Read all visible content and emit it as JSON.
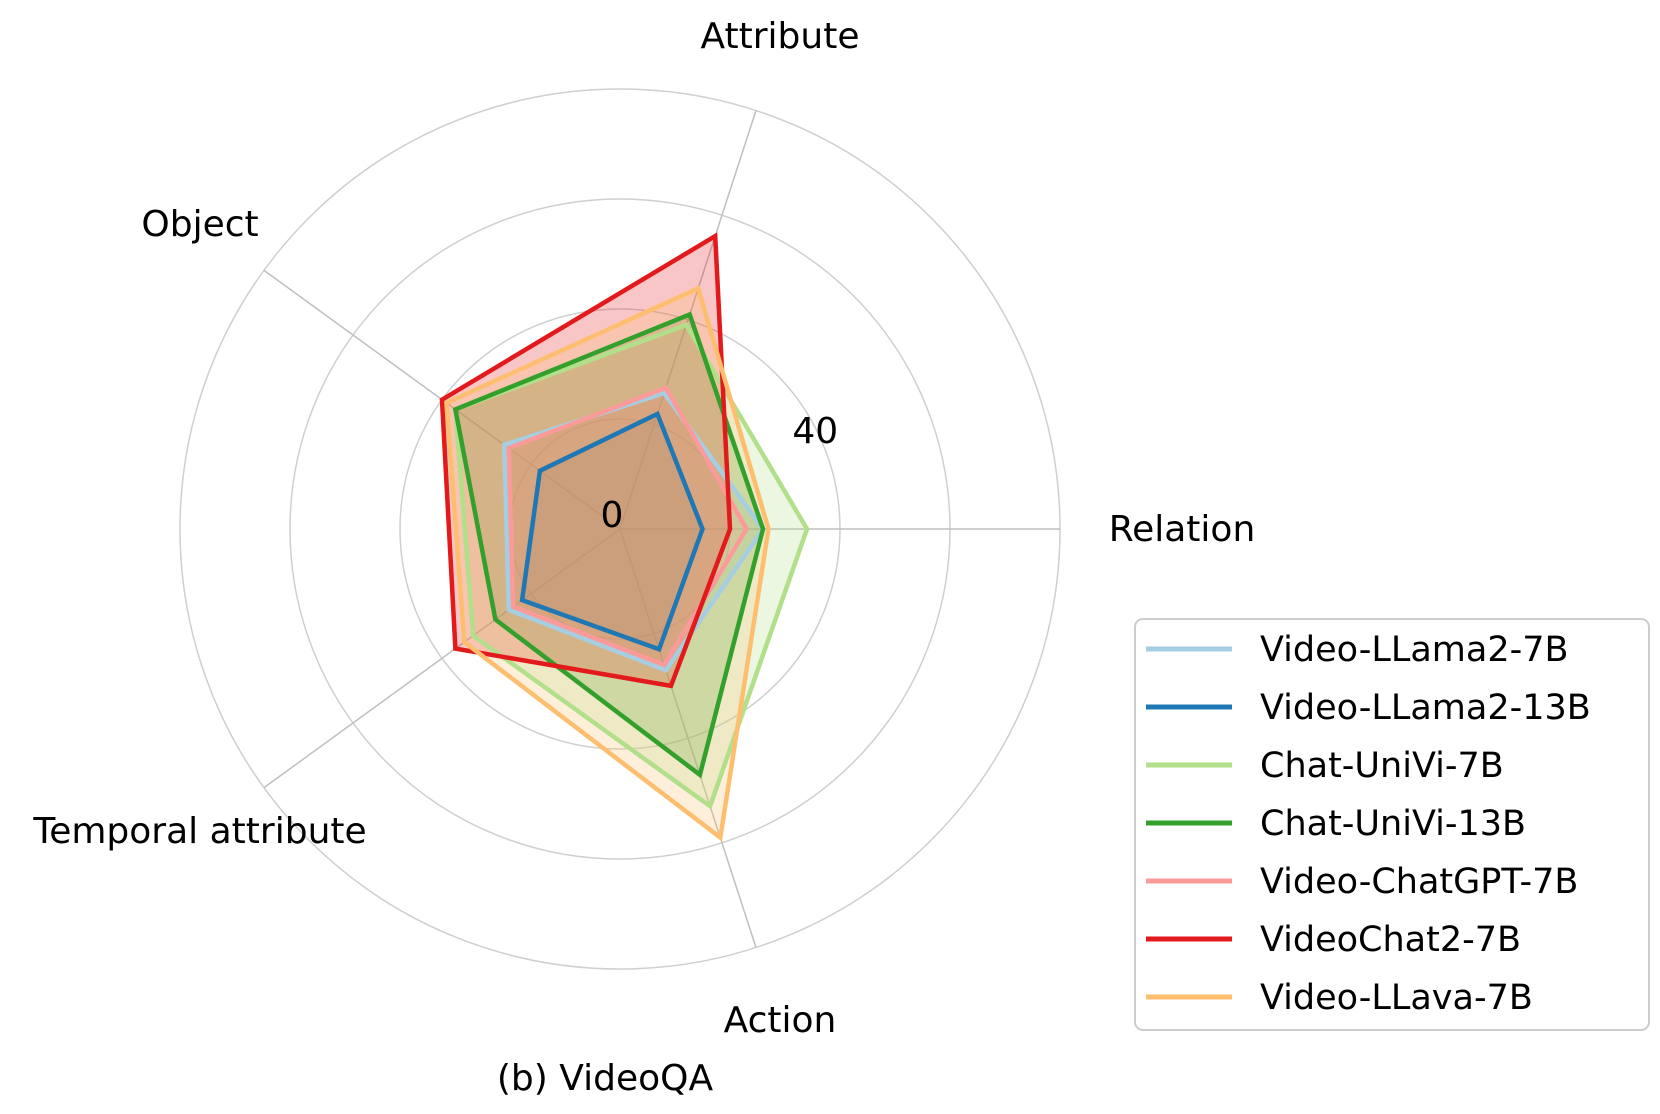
{
  "caption": "(b) VideoQA",
  "chart_data": {
    "type": "radar",
    "axes": [
      "Relation",
      "Attribute",
      "Object",
      "Temporal attribute",
      "Action"
    ],
    "tick_labels": [
      "0",
      "40"
    ],
    "range": [
      0,
      80
    ],
    "legend_position": "right",
    "series": [
      {
        "name": "Video-LLama2-7B",
        "color": "#a6cee3",
        "values": [
          26,
          26,
          26,
          25,
          27
        ]
      },
      {
        "name": "Video-LLama2-13B",
        "color": "#1f78b4",
        "values": [
          15,
          22,
          18,
          22,
          23
        ]
      },
      {
        "name": "Chat-UniVi-7B",
        "color": "#b2df8a",
        "values": [
          34,
          39,
          37,
          33,
          53
        ]
      },
      {
        "name": "Chat-UniVi-13B",
        "color": "#33a02c",
        "values": [
          26,
          41,
          37,
          28,
          47
        ]
      },
      {
        "name": "Video-ChatGPT-7B",
        "color": "#fb9a99",
        "values": [
          23,
          27,
          25,
          24,
          26
        ]
      },
      {
        "name": "VideoChat2-7B",
        "color": "#e31a1c",
        "values": [
          20,
          56,
          40,
          37,
          30
        ]
      },
      {
        "name": "Video-LLava-7B",
        "color": "#fdbf6f",
        "values": [
          27,
          46,
          39,
          35,
          59
        ]
      }
    ]
  }
}
